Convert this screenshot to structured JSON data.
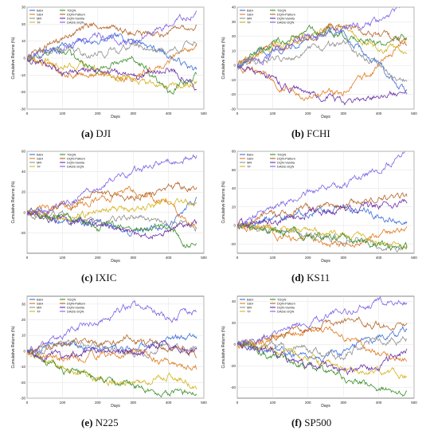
{
  "legend_labels": [
    "B&H",
    "S&H",
    "MR",
    "TF",
    "TDQN",
    "DQN-Pattern",
    "DQN-Vanilla",
    "DADE-DQN"
  ],
  "series_colors": [
    "#3a6fd8",
    "#e07a1f",
    "#8f8f8f",
    "#d4b21b",
    "#3a8f2a",
    "#b5652a",
    "#6a2fa8",
    "#7d63e6"
  ],
  "ylabel": "Cumulative Returns (%)",
  "xlabel": "Days",
  "chart_data": [
    {
      "type": "line",
      "letter": "(a)",
      "caption": "DJI",
      "xlim": [
        0,
        500
      ],
      "ylim": [
        -30,
        30
      ],
      "xticks": [
        "0",
        "100",
        "200",
        "300",
        "400",
        "500"
      ],
      "yticks": [
        "-30",
        "-20",
        "-10",
        "0",
        "10",
        "20",
        "30"
      ],
      "x": [
        0,
        100,
        200,
        300,
        400,
        480
      ],
      "series": [
        {
          "name": "B&H",
          "values": [
            0,
            8,
            10,
            12,
            2,
            -8
          ]
        },
        {
          "name": "S&H",
          "values": [
            0,
            -8,
            -10,
            -12,
            -2,
            8
          ]
        },
        {
          "name": "MR",
          "values": [
            0,
            5,
            2,
            8,
            4,
            10
          ]
        },
        {
          "name": "TF",
          "values": [
            0,
            -2,
            -8,
            -12,
            -18,
            -14
          ]
        },
        {
          "name": "TDQN",
          "values": [
            0,
            4,
            -6,
            2,
            -20,
            -10
          ]
        },
        {
          "name": "DQN-Pattern",
          "values": [
            0,
            12,
            20,
            15,
            14,
            20
          ]
        },
        {
          "name": "DQN-Vanilla",
          "values": [
            0,
            -8,
            -6,
            -12,
            -6,
            -16
          ]
        },
        {
          "name": "DADE-DQN",
          "values": [
            0,
            6,
            14,
            10,
            18,
            28
          ]
        }
      ]
    },
    {
      "type": "line",
      "letter": "(b)",
      "caption": "FCHI",
      "xlim": [
        0,
        500
      ],
      "ylim": [
        -30,
        40
      ],
      "xticks": [
        "0",
        "100",
        "200",
        "300",
        "400",
        "500"
      ],
      "yticks": [
        "-30",
        "-20",
        "-10",
        "0",
        "10",
        "20",
        "30",
        "40"
      ],
      "x": [
        0,
        100,
        200,
        300,
        400,
        480
      ],
      "series": [
        {
          "name": "B&H",
          "values": [
            0,
            10,
            20,
            20,
            0,
            -18
          ]
        },
        {
          "name": "S&H",
          "values": [
            0,
            -10,
            -20,
            -20,
            0,
            18
          ]
        },
        {
          "name": "MR",
          "values": [
            0,
            5,
            10,
            15,
            0,
            -12
          ]
        },
        {
          "name": "TF",
          "values": [
            0,
            12,
            22,
            26,
            12,
            10
          ]
        },
        {
          "name": "TDQN",
          "values": [
            0,
            15,
            25,
            20,
            15,
            20
          ]
        },
        {
          "name": "DQN-Pattern",
          "values": [
            0,
            12,
            20,
            28,
            20,
            15
          ]
        },
        {
          "name": "DQN-Vanilla",
          "values": [
            0,
            -10,
            -20,
            -25,
            -22,
            -18
          ]
        },
        {
          "name": "DADE-DQN",
          "values": [
            0,
            8,
            18,
            25,
            30,
            43
          ]
        }
      ]
    },
    {
      "type": "line",
      "letter": "(c)",
      "caption": "IXIC",
      "xlim": [
        0,
        500
      ],
      "ylim": [
        -40,
        60
      ],
      "xticks": [
        "0",
        "100",
        "200",
        "300",
        "400",
        "500"
      ],
      "yticks": [
        "-20",
        "0",
        "20",
        "40",
        "60"
      ],
      "x": [
        0,
        100,
        200,
        300,
        400,
        480
      ],
      "series": [
        {
          "name": "B&H",
          "values": [
            0,
            -8,
            -12,
            -20,
            -10,
            15
          ]
        },
        {
          "name": "S&H",
          "values": [
            0,
            8,
            12,
            20,
            10,
            -15
          ]
        },
        {
          "name": "MR",
          "values": [
            0,
            -2,
            -10,
            -5,
            -12,
            -15
          ]
        },
        {
          "name": "TF",
          "values": [
            0,
            -5,
            2,
            5,
            10,
            8
          ]
        },
        {
          "name": "TDQN",
          "values": [
            0,
            -5,
            -15,
            -12,
            -18,
            -35
          ]
        },
        {
          "name": "DQN-Pattern",
          "values": [
            0,
            5,
            18,
            15,
            25,
            25
          ]
        },
        {
          "name": "DQN-Vanilla",
          "values": [
            0,
            -8,
            -10,
            -22,
            -18,
            -10
          ]
        },
        {
          "name": "DADE-DQN",
          "values": [
            0,
            8,
            25,
            40,
            50,
            55
          ]
        }
      ]
    },
    {
      "type": "line",
      "letter": "(d)",
      "caption": "KS11",
      "xlim": [
        0,
        500
      ],
      "ylim": [
        -30,
        80
      ],
      "xticks": [
        "0",
        "100",
        "200",
        "300",
        "400",
        "500"
      ],
      "yticks": [
        "-20",
        "0",
        "20",
        "40",
        "60",
        "80"
      ],
      "x": [
        0,
        100,
        200,
        300,
        400,
        480
      ],
      "series": [
        {
          "name": "B&H",
          "values": [
            0,
            8,
            15,
            20,
            10,
            5
          ]
        },
        {
          "name": "S&H",
          "values": [
            0,
            -8,
            -15,
            -20,
            -10,
            -5
          ]
        },
        {
          "name": "MR",
          "values": [
            0,
            -5,
            -10,
            -15,
            -20,
            -25
          ]
        },
        {
          "name": "TF",
          "values": [
            0,
            -3,
            -8,
            -10,
            -18,
            -22
          ]
        },
        {
          "name": "TDQN",
          "values": [
            0,
            -6,
            -12,
            -15,
            -20,
            -25
          ]
        },
        {
          "name": "DQN-Pattern",
          "values": [
            0,
            10,
            18,
            22,
            28,
            30
          ]
        },
        {
          "name": "DQN-Vanilla",
          "values": [
            0,
            5,
            15,
            18,
            22,
            25
          ]
        },
        {
          "name": "DADE-DQN",
          "values": [
            0,
            20,
            35,
            45,
            60,
            80
          ]
        }
      ]
    },
    {
      "type": "line",
      "letter": "(e)",
      "caption": "N225",
      "xlim": [
        0,
        500
      ],
      "ylim": [
        -30,
        35
      ],
      "xticks": [
        "0",
        "100",
        "200",
        "300",
        "400",
        "500"
      ],
      "yticks": [
        "-30",
        "-20",
        "-10",
        "0",
        "10",
        "20",
        "30"
      ],
      "x": [
        0,
        100,
        200,
        300,
        400,
        480
      ],
      "series": [
        {
          "name": "B&H",
          "values": [
            0,
            5,
            2,
            0,
            8,
            10
          ]
        },
        {
          "name": "S&H",
          "values": [
            0,
            -5,
            -2,
            0,
            -8,
            -10
          ]
        },
        {
          "name": "MR",
          "values": [
            0,
            3,
            5,
            -2,
            2,
            0
          ]
        },
        {
          "name": "TF",
          "values": [
            0,
            -10,
            -18,
            -20,
            -15,
            -22
          ]
        },
        {
          "name": "TDQN",
          "values": [
            0,
            -12,
            -18,
            -22,
            -28,
            -26
          ]
        },
        {
          "name": "DQN-Pattern",
          "values": [
            0,
            6,
            4,
            8,
            2,
            -2
          ]
        },
        {
          "name": "DQN-Vanilla",
          "values": [
            0,
            -4,
            2,
            -2,
            4,
            0
          ]
        },
        {
          "name": "DADE-DQN",
          "values": [
            0,
            10,
            20,
            30,
            22,
            25
          ]
        }
      ]
    },
    {
      "type": "line",
      "letter": "(f)",
      "caption": "SP500",
      "xlim": [
        0,
        500
      ],
      "ylim": [
        -50,
        45
      ],
      "xticks": [
        "0",
        "100",
        "200",
        "300",
        "400",
        "500"
      ],
      "yticks": [
        "-40",
        "-20",
        "0",
        "20",
        "40"
      ],
      "x": [
        0,
        100,
        200,
        300,
        400,
        480
      ],
      "series": [
        {
          "name": "B&H",
          "values": [
            0,
            -5,
            -15,
            -8,
            8,
            15
          ]
        },
        {
          "name": "S&H",
          "values": [
            0,
            5,
            15,
            8,
            -8,
            -15
          ]
        },
        {
          "name": "MR",
          "values": [
            0,
            -2,
            -5,
            -10,
            5,
            5
          ]
        },
        {
          "name": "TF",
          "values": [
            0,
            -5,
            -15,
            -20,
            -25,
            -30
          ]
        },
        {
          "name": "TDQN",
          "values": [
            0,
            -10,
            -20,
            -30,
            -40,
            -45
          ]
        },
        {
          "name": "DQN-Pattern",
          "values": [
            0,
            8,
            15,
            20,
            18,
            22
          ]
        },
        {
          "name": "DQN-Vanilla",
          "values": [
            0,
            -8,
            -18,
            -25,
            -20,
            -5
          ]
        },
        {
          "name": "DADE-DQN",
          "values": [
            0,
            10,
            20,
            28,
            40,
            40
          ]
        }
      ]
    }
  ]
}
